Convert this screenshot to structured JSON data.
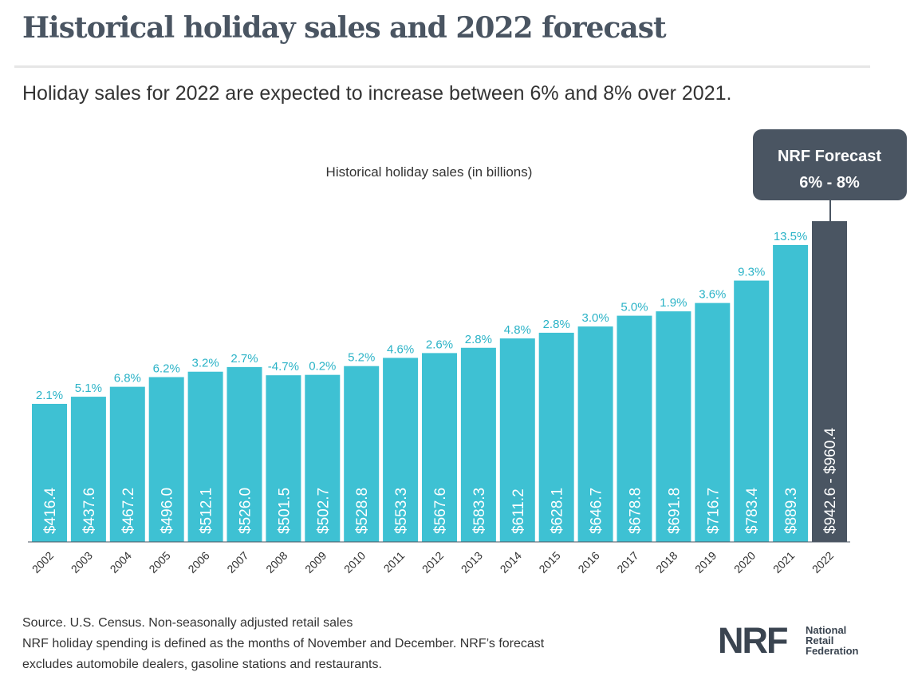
{
  "header": {
    "title": "Historical holiday sales and 2022 forecast",
    "subtitle": "Holiday sales for 2022 are expected to increase between 6% and 8% over 2021."
  },
  "chart_data": {
    "type": "bar",
    "title": "Historical holiday sales (in billions)",
    "categories": [
      "2002",
      "2003",
      "2004",
      "2005",
      "2006",
      "2007",
      "2008",
      "2009",
      "2010",
      "2011",
      "2012",
      "2013",
      "2014",
      "2015",
      "2016",
      "2017",
      "2018",
      "2019",
      "2020",
      "2021",
      "2022"
    ],
    "values": [
      416.4,
      437.6,
      467.2,
      496.0,
      512.1,
      526.0,
      501.5,
      502.7,
      528.8,
      553.3,
      567.6,
      583.3,
      611.2,
      628.1,
      646.7,
      678.8,
      691.8,
      716.7,
      783.4,
      889.3,
      960.4
    ],
    "value_labels": [
      "$416.4",
      "$437.6",
      "$467.2",
      "$496.0",
      "$512.1",
      "$526.0",
      "$501.5",
      "$502.7",
      "$528.8",
      "$553.3",
      "$567.6",
      "$583.3",
      "$611.2",
      "$628.1",
      "$646.7",
      "$678.8",
      "$691.8",
      "$716.7",
      "$783.4",
      "$889.3",
      "$942.6 - $960.4"
    ],
    "growth_labels": [
      "2.1%",
      "5.1%",
      "6.8%",
      "6.2%",
      "3.2%",
      "2.7%",
      "-4.7%",
      "0.2%",
      "5.2%",
      "4.6%",
      "2.6%",
      "2.8%",
      "4.8%",
      "2.8%",
      "3.0%",
      "5.0%",
      "1.9%",
      "3.6%",
      "9.3%",
      "13.5%",
      ""
    ],
    "forecast": {
      "category": "2022",
      "range": [
        942.6,
        960.4
      ],
      "callout_title": "NRF Forecast",
      "callout_range": "6% - 8%"
    },
    "colors": {
      "historical": "#3ec1d3",
      "forecast": "#4a5562",
      "callout": "#4a5562"
    }
  },
  "footer": {
    "line1": "Source. U.S. Census. Non-seasonally adjusted retail sales",
    "line2": "NRF holiday spending is defined as the months of November and December. NRF’s forecast",
    "line3": "excludes automobile dealers, gasoline stations and restaurants."
  },
  "logo": {
    "mark": "NRF",
    "line1": "National",
    "line2": "Retail",
    "line3": "Federation"
  }
}
